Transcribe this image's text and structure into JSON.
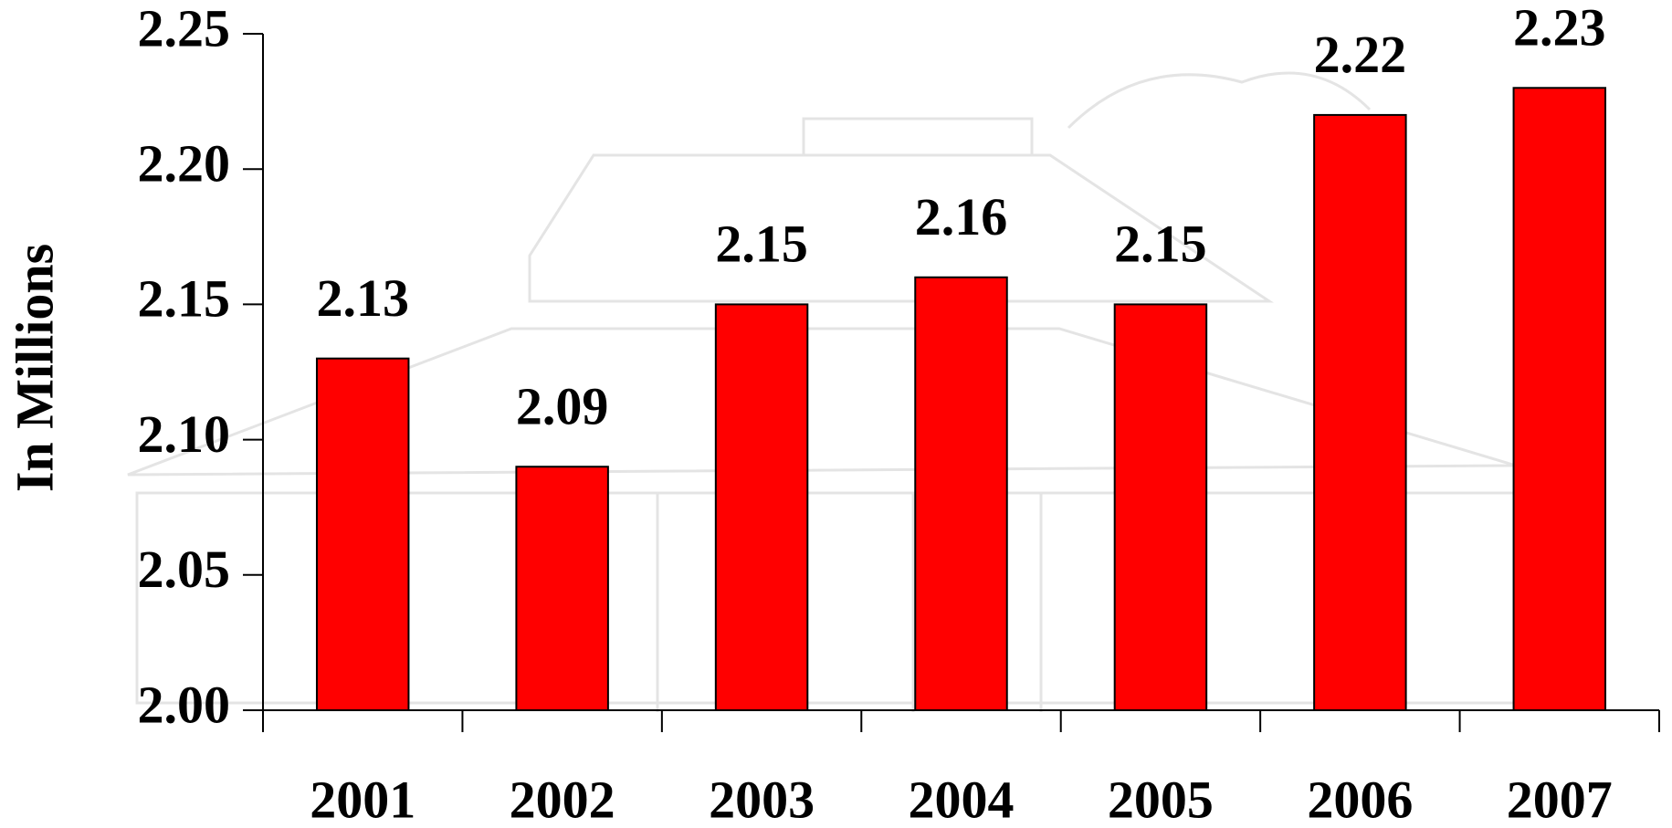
{
  "chart_data": {
    "type": "bar",
    "y_label": "In Millions",
    "categories": [
      "2001",
      "2002",
      "2003",
      "2004",
      "2005",
      "2006",
      "2007"
    ],
    "values": [
      2.13,
      2.09,
      2.15,
      2.16,
      2.15,
      2.22,
      2.23
    ],
    "color": "#ff0000",
    "ylim": [
      2.0,
      2.25
    ],
    "yticks": [
      {
        "value": 2.0,
        "label": "2.00"
      },
      2.05,
      {
        "value": 2.1,
        "label": "2.10"
      },
      2.15,
      {
        "value": 2.2,
        "label": "2.20"
      },
      2.25
    ],
    "grid": false
  }
}
